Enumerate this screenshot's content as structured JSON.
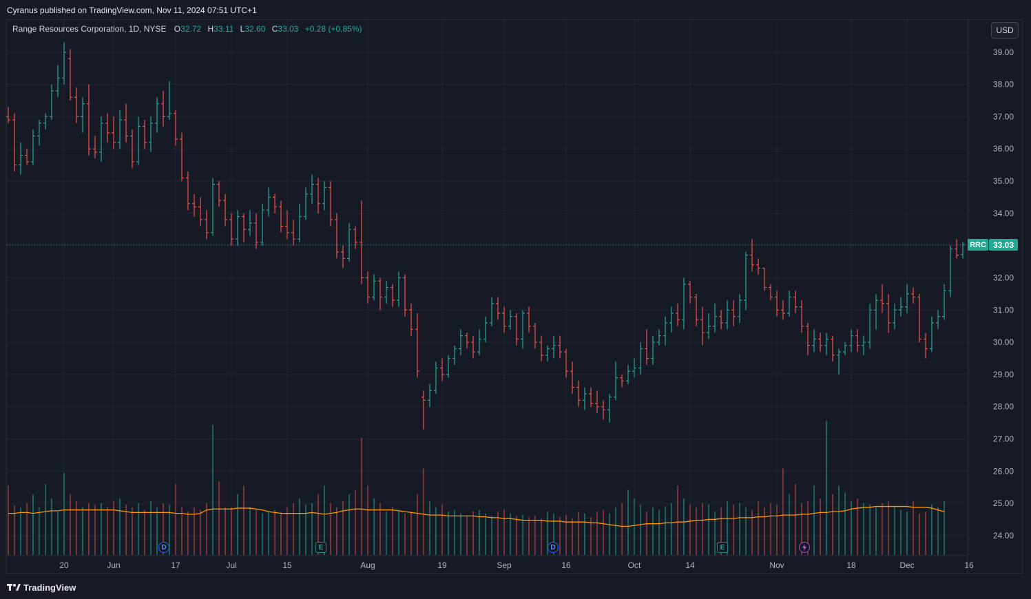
{
  "header": {
    "published": "Cyranus published on TradingView.com, Nov 11, 2024 07:51 UTC+1"
  },
  "legend": {
    "name": "Range Resources Corporation, 1D, NYSE",
    "o_label": "O",
    "o": "32.72",
    "h_label": "H",
    "h": "33.11",
    "l_label": "L",
    "l": "32.60",
    "c_label": "C",
    "c": "33.03",
    "change": "+0.28 (+0.85%)"
  },
  "currency": "USD",
  "price_tag": {
    "symbol": "RRC",
    "value": "33.03"
  },
  "footer": {
    "brand": "TradingView"
  },
  "events": {
    "dividend": "D",
    "earnings": "E"
  },
  "colors": {
    "up": "#26a69a",
    "down": "#ef5350",
    "ma": "#ff9800",
    "grid": "#232632",
    "text": "#b2b5be"
  },
  "chart_data": {
    "type": "ohlc",
    "title": "Range Resources Corporation, 1D, NYSE",
    "ylim": [
      23.4,
      40.0
    ],
    "y_ticks": [
      "24.00",
      "25.00",
      "26.00",
      "27.00",
      "28.00",
      "29.00",
      "30.00",
      "31.00",
      "32.00",
      "33.00",
      "34.00",
      "35.00",
      "36.00",
      "37.00",
      "38.00",
      "39.00"
    ],
    "x_tick_labels": [
      {
        "label": "20",
        "index": 9
      },
      {
        "label": "Jun",
        "index": 17
      },
      {
        "label": "17",
        "index": 27
      },
      {
        "label": "Jul",
        "index": 36
      },
      {
        "label": "15",
        "index": 45
      },
      {
        "label": "Aug",
        "index": 58
      },
      {
        "label": "19",
        "index": 70
      },
      {
        "label": "Sep",
        "index": 80
      },
      {
        "label": "16",
        "index": 90
      },
      {
        "label": "Oct",
        "index": 101
      },
      {
        "label": "14",
        "index": 110
      },
      {
        "label": "Nov",
        "index": 124
      },
      {
        "label": "18",
        "index": 136
      },
      {
        "label": "Dec",
        "index": 145
      },
      {
        "label": "16",
        "index": 155
      }
    ],
    "last_close": 33.03,
    "ohlc": [
      [
        37.0,
        37.3,
        36.8,
        36.9
      ],
      [
        36.9,
        37.1,
        35.3,
        35.5
      ],
      [
        35.5,
        36.2,
        35.2,
        35.8
      ],
      [
        35.8,
        36.0,
        35.5,
        35.6
      ],
      [
        35.6,
        36.6,
        35.5,
        36.4
      ],
      [
        36.4,
        36.9,
        36.1,
        36.8
      ],
      [
        36.8,
        37.1,
        36.6,
        37.0
      ],
      [
        37.0,
        38.0,
        36.9,
        37.8
      ],
      [
        37.8,
        38.6,
        37.6,
        38.2
      ],
      [
        38.2,
        39.3,
        38.0,
        39.0
      ],
      [
        38.8,
        39.1,
        37.5,
        37.6
      ],
      [
        37.6,
        37.9,
        36.8,
        37.0
      ],
      [
        37.0,
        37.6,
        36.5,
        37.4
      ],
      [
        37.4,
        38.0,
        35.8,
        36.0
      ],
      [
        36.0,
        36.4,
        35.7,
        35.9
      ],
      [
        35.9,
        37.0,
        35.6,
        36.8
      ],
      [
        36.8,
        37.1,
        36.2,
        36.5
      ],
      [
        36.5,
        37.0,
        36.0,
        36.2
      ],
      [
        36.2,
        37.2,
        36.0,
        36.9
      ],
      [
        36.9,
        37.4,
        36.2,
        36.4
      ],
      [
        36.4,
        36.6,
        35.4,
        35.6
      ],
      [
        35.6,
        37.0,
        35.5,
        36.7
      ],
      [
        36.7,
        36.9,
        36.0,
        36.2
      ],
      [
        36.2,
        37.0,
        35.9,
        36.8
      ],
      [
        36.8,
        37.6,
        36.5,
        37.4
      ],
      [
        37.4,
        37.8,
        36.7,
        37.0
      ],
      [
        37.0,
        38.1,
        36.9,
        37.1
      ],
      [
        37.1,
        37.2,
        36.1,
        36.3
      ],
      [
        36.3,
        36.5,
        35.0,
        35.1
      ],
      [
        35.1,
        35.3,
        34.1,
        34.3
      ],
      [
        34.3,
        34.6,
        33.9,
        34.2
      ],
      [
        34.2,
        34.5,
        33.6,
        33.8
      ],
      [
        33.8,
        34.1,
        33.2,
        33.4
      ],
      [
        33.4,
        35.1,
        33.3,
        34.9
      ],
      [
        34.9,
        35.0,
        34.2,
        34.4
      ],
      [
        34.4,
        34.6,
        33.6,
        33.8
      ],
      [
        33.8,
        34.0,
        33.0,
        33.2
      ],
      [
        33.2,
        34.1,
        33.0,
        33.9
      ],
      [
        33.9,
        34.0,
        33.1,
        33.5
      ],
      [
        33.5,
        34.1,
        33.3,
        33.7
      ],
      [
        33.7,
        34.0,
        32.9,
        33.1
      ],
      [
        33.1,
        34.3,
        33.0,
        34.1
      ],
      [
        34.1,
        34.8,
        33.9,
        34.5
      ],
      [
        34.5,
        34.6,
        34.0,
        34.2
      ],
      [
        34.2,
        34.4,
        33.4,
        33.6
      ],
      [
        33.6,
        34.1,
        33.2,
        33.4
      ],
      [
        33.4,
        33.8,
        33.0,
        33.2
      ],
      [
        33.2,
        34.3,
        33.1,
        33.9
      ],
      [
        33.9,
        34.8,
        33.8,
        34.6
      ],
      [
        34.6,
        35.2,
        34.3,
        34.9
      ],
      [
        34.9,
        35.1,
        34.0,
        34.3
      ],
      [
        34.3,
        35.0,
        34.1,
        34.8
      ],
      [
        34.8,
        35.0,
        33.6,
        33.8
      ],
      [
        33.8,
        34.0,
        32.6,
        32.8
      ],
      [
        32.8,
        33.0,
        32.3,
        32.6
      ],
      [
        32.6,
        33.7,
        32.5,
        33.5
      ],
      [
        33.5,
        33.6,
        32.9,
        33.1
      ],
      [
        33.1,
        34.4,
        31.8,
        32.0
      ],
      [
        32.0,
        32.2,
        31.2,
        31.4
      ],
      [
        31.4,
        32.1,
        31.3,
        31.9
      ],
      [
        31.9,
        32.0,
        31.0,
        31.4
      ],
      [
        31.4,
        31.9,
        31.2,
        31.7
      ],
      [
        31.7,
        31.8,
        31.1,
        31.3
      ],
      [
        31.3,
        32.2,
        31.1,
        32.0
      ],
      [
        32.0,
        32.1,
        30.8,
        31.0
      ],
      [
        31.0,
        31.2,
        30.2,
        30.4
      ],
      [
        30.4,
        30.9,
        28.9,
        29.1
      ],
      [
        28.3,
        28.5,
        27.3,
        28.2
      ],
      [
        28.2,
        28.7,
        28.0,
        28.5
      ],
      [
        28.5,
        29.4,
        28.4,
        29.2
      ],
      [
        29.2,
        29.5,
        28.8,
        29.0
      ],
      [
        29.0,
        29.6,
        28.9,
        29.5
      ],
      [
        29.5,
        29.9,
        29.3,
        29.8
      ],
      [
        29.8,
        30.4,
        29.6,
        30.2
      ],
      [
        30.2,
        30.3,
        29.8,
        30.0
      ],
      [
        30.0,
        30.2,
        29.5,
        29.7
      ],
      [
        29.7,
        30.4,
        29.6,
        30.1
      ],
      [
        30.1,
        30.8,
        30.0,
        30.6
      ],
      [
        30.6,
        31.4,
        30.5,
        31.2
      ],
      [
        31.2,
        31.4,
        30.7,
        30.9
      ],
      [
        30.9,
        31.1,
        30.3,
        30.5
      ],
      [
        30.5,
        31.0,
        30.4,
        30.8
      ],
      [
        30.8,
        30.9,
        29.9,
        30.1
      ],
      [
        30.1,
        31.0,
        29.8,
        30.9
      ],
      [
        30.9,
        31.1,
        30.3,
        30.5
      ],
      [
        30.5,
        30.6,
        29.8,
        30.0
      ],
      [
        30.0,
        30.2,
        29.4,
        29.6
      ],
      [
        29.6,
        29.9,
        29.4,
        29.8
      ],
      [
        29.8,
        30.2,
        29.5,
        29.9
      ],
      [
        29.9,
        30.2,
        29.5,
        29.7
      ],
      [
        29.7,
        29.8,
        28.9,
        29.1
      ],
      [
        29.1,
        29.4,
        28.4,
        28.6
      ],
      [
        28.6,
        28.8,
        28.0,
        28.2
      ],
      [
        28.2,
        28.6,
        27.9,
        28.4
      ],
      [
        28.4,
        28.6,
        28.0,
        28.1
      ],
      [
        28.1,
        28.5,
        27.8,
        28.0
      ],
      [
        28.0,
        28.2,
        27.6,
        27.9
      ],
      [
        27.9,
        28.4,
        27.5,
        28.3
      ],
      [
        28.3,
        29.4,
        28.2,
        28.9
      ],
      [
        28.9,
        29.0,
        28.6,
        28.8
      ]
    ],
    "ohlc_late": [
      [
        28.8,
        29.3,
        28.7,
        29.1
      ],
      [
        29.1,
        29.5,
        28.9,
        29.2
      ],
      [
        29.2,
        30.0,
        29.0,
        29.8
      ],
      [
        29.8,
        30.4,
        29.3,
        29.5
      ],
      [
        29.5,
        30.2,
        29.3,
        30.0
      ],
      [
        30.0,
        30.4,
        29.9,
        30.2
      ],
      [
        30.2,
        30.8,
        29.9,
        30.6
      ],
      [
        30.6,
        31.1,
        30.3,
        30.9
      ],
      [
        30.9,
        31.2,
        30.5,
        30.7
      ],
      [
        30.7,
        32.0,
        30.4,
        31.8
      ],
      [
        31.8,
        31.9,
        31.2,
        31.4
      ],
      [
        31.4,
        31.5,
        30.5,
        30.7
      ],
      [
        30.7,
        31.1,
        29.9,
        30.3
      ],
      [
        30.3,
        30.9,
        30.1,
        30.5
      ],
      [
        30.5,
        31.2,
        30.3,
        30.8
      ],
      [
        30.8,
        31.0,
        30.4,
        30.6
      ],
      [
        30.6,
        31.3,
        30.4,
        31.0
      ],
      [
        31.0,
        31.3,
        30.5,
        30.8
      ],
      [
        30.8,
        31.5,
        30.6,
        31.3
      ],
      [
        31.3,
        32.8,
        31.0,
        32.7
      ],
      [
        32.7,
        33.2,
        32.2,
        32.4
      ],
      [
        32.4,
        32.6,
        32.1,
        32.3
      ],
      [
        32.3,
        32.3,
        31.6,
        31.7
      ],
      [
        31.7,
        31.8,
        31.3,
        31.4
      ],
      [
        31.4,
        31.6,
        30.8,
        31.0
      ],
      [
        31.0,
        31.3,
        30.7,
        30.9
      ],
      [
        30.9,
        31.6,
        30.8,
        31.4
      ],
      [
        31.4,
        31.6,
        30.9,
        31.1
      ],
      [
        31.1,
        31.3,
        30.3,
        30.5
      ],
      [
        30.5,
        30.6,
        29.6,
        29.9
      ],
      [
        29.9,
        30.4,
        29.7,
        30.1
      ],
      [
        30.1,
        30.3,
        29.7,
        29.9
      ],
      [
        29.9,
        30.3,
        29.6,
        30.1
      ],
      [
        30.1,
        30.2,
        29.4,
        29.6
      ],
      [
        29.6,
        29.8,
        29.0,
        29.7
      ],
      [
        29.7,
        30.0,
        29.6,
        29.9
      ],
      [
        29.9,
        30.4,
        29.7,
        30.2
      ],
      [
        30.2,
        30.4,
        29.7,
        29.9
      ],
      [
        29.9,
        30.2,
        29.6,
        30.0
      ],
      [
        30.0,
        31.2,
        29.8,
        31.0
      ],
      [
        31.0,
        31.5,
        30.4,
        31.3
      ],
      [
        31.3,
        31.8,
        30.9,
        31.2
      ],
      [
        31.2,
        31.5,
        30.3,
        30.6
      ],
      [
        30.6,
        31.2,
        30.4,
        31.0
      ],
      [
        31.0,
        31.4,
        30.8,
        31.1
      ],
      [
        31.1,
        31.8,
        30.9,
        31.5
      ],
      [
        31.5,
        31.7,
        31.2,
        31.4
      ],
      [
        31.4,
        31.5,
        30.0,
        30.1
      ],
      [
        30.1,
        30.3,
        29.5,
        29.8
      ],
      [
        29.8,
        30.8,
        29.7,
        30.6
      ],
      [
        30.6,
        31.0,
        30.4,
        30.8
      ],
      [
        30.8,
        31.8,
        30.7,
        31.6
      ],
      [
        31.6,
        33.0,
        31.4,
        32.9
      ],
      [
        32.9,
        33.2,
        32.6,
        32.7
      ],
      [
        32.72,
        33.11,
        32.6,
        33.03
      ]
    ],
    "volume": [
      0.8,
      0.57,
      0.55,
      0.6,
      0.7,
      0.55,
      0.82,
      0.65,
      0.5,
      0.95,
      0.7,
      0.62,
      0.55,
      0.6,
      0.58,
      0.6,
      0.55,
      0.62,
      0.65,
      0.58,
      0.55,
      0.6,
      0.52,
      0.62,
      0.55,
      0.6,
      0.58,
      0.82,
      0.55,
      0.5,
      0.55,
      0.52,
      0.6,
      1.5,
      0.85,
      0.55,
      0.55,
      0.7,
      0.8,
      0.55,
      0.52,
      0.48,
      0.5,
      0.52,
      0.5,
      0.55,
      0.6,
      0.65,
      0.58,
      0.6,
      0.7,
      0.8,
      0.6,
      0.55,
      0.62,
      0.7,
      0.75,
      1.35,
      0.8,
      0.65,
      0.6,
      0.5,
      0.55,
      0.52,
      0.48,
      0.5,
      0.7,
      1.0,
      0.62,
      0.55,
      0.58,
      0.5,
      0.52,
      0.48,
      0.45,
      0.5,
      0.52,
      0.48,
      0.45,
      0.5,
      0.52,
      0.48,
      0.45,
      0.46,
      0.44,
      0.45,
      0.42,
      0.5,
      0.48,
      0.44,
      0.46,
      0.42,
      0.5,
      0.48,
      0.44,
      0.5,
      0.52,
      0.48,
      0.55,
      0.6,
      0.75,
      0.65,
      0.58,
      0.5,
      0.55,
      0.52,
      0.56,
      0.6,
      0.8,
      0.65,
      0.58,
      0.55,
      0.6,
      0.58,
      0.5,
      0.55,
      0.62,
      0.58,
      0.6,
      0.55,
      0.52,
      0.62,
      0.55,
      0.6,
      0.58,
      1.0,
      0.7,
      0.82,
      0.6,
      0.62,
      0.8,
      0.65,
      1.55,
      0.7,
      0.8,
      0.72,
      0.62,
      0.65,
      0.6,
      0.58,
      0.55,
      0.6,
      0.62,
      0.55,
      0.52,
      0.5,
      0.62,
      0.48,
      0.5,
      0.58,
      0.55,
      0.62
    ],
    "ma_level": [
      0.48,
      0.48,
      0.49,
      0.49,
      0.48,
      0.49,
      0.5,
      0.51,
      0.51,
      0.52,
      0.52,
      0.52,
      0.52,
      0.52,
      0.52,
      0.52,
      0.52,
      0.52,
      0.51,
      0.5,
      0.49,
      0.49,
      0.49,
      0.49,
      0.49,
      0.49,
      0.49,
      0.48,
      0.48,
      0.47,
      0.47,
      0.48,
      0.52,
      0.53,
      0.53,
      0.53,
      0.53,
      0.54,
      0.54,
      0.54,
      0.53,
      0.52,
      0.5,
      0.49,
      0.48,
      0.48,
      0.48,
      0.48,
      0.48,
      0.49,
      0.48,
      0.47,
      0.48,
      0.49,
      0.51,
      0.52,
      0.53,
      0.53,
      0.52,
      0.52,
      0.52,
      0.52,
      0.52,
      0.51,
      0.5,
      0.49,
      0.48,
      0.47,
      0.46,
      0.46,
      0.46,
      0.45,
      0.45,
      0.45,
      0.45,
      0.45,
      0.44,
      0.44,
      0.43,
      0.43,
      0.42,
      0.42,
      0.41,
      0.4,
      0.4,
      0.4,
      0.4,
      0.39,
      0.39,
      0.39,
      0.38,
      0.38,
      0.38,
      0.38,
      0.37,
      0.37,
      0.36,
      0.35,
      0.34,
      0.33,
      0.33,
      0.34,
      0.35,
      0.36,
      0.36,
      0.36,
      0.37,
      0.37,
      0.38,
      0.38,
      0.39,
      0.4,
      0.4,
      0.41,
      0.41,
      0.42,
      0.42,
      0.42,
      0.43,
      0.43,
      0.43,
      0.44,
      0.44,
      0.45,
      0.45,
      0.46,
      0.46,
      0.46,
      0.47,
      0.47,
      0.48,
      0.49,
      0.49,
      0.5,
      0.5,
      0.51,
      0.53,
      0.54,
      0.55,
      0.55,
      0.56,
      0.56,
      0.56,
      0.56,
      0.56,
      0.56,
      0.55,
      0.55,
      0.55,
      0.54,
      0.52,
      0.5
    ]
  }
}
